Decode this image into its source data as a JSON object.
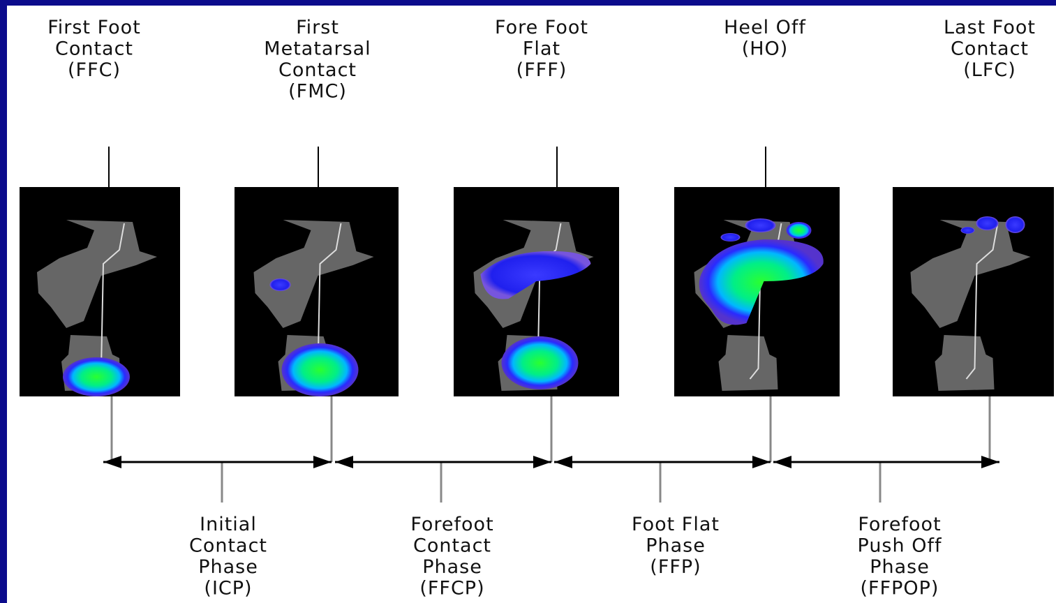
{
  "events": [
    {
      "label": [
        "First Foot",
        "Contact",
        "(FFC)"
      ]
    },
    {
      "label": [
        "First",
        "Metatarsal",
        "Contact",
        "(FMC)"
      ]
    },
    {
      "label": [
        "Fore Foot",
        "Flat",
        "(FFF)"
      ]
    },
    {
      "label": [
        "Heel Off",
        "(HO)"
      ]
    },
    {
      "label": [
        "Last Foot",
        "Contact",
        "(LFC)"
      ]
    }
  ],
  "phases": [
    {
      "label": [
        "Initial",
        "Contact",
        "Phase",
        "(ICP)"
      ]
    },
    {
      "label": [
        "Forefoot",
        "Contact",
        "Phase",
        "(FFCP)"
      ]
    },
    {
      "label": [
        "Foot Flat",
        "Phase",
        "(FFP)"
      ]
    },
    {
      "label": [
        "Forefoot",
        "Push Off",
        "Phase",
        "(FFPOP)"
      ]
    }
  ]
}
